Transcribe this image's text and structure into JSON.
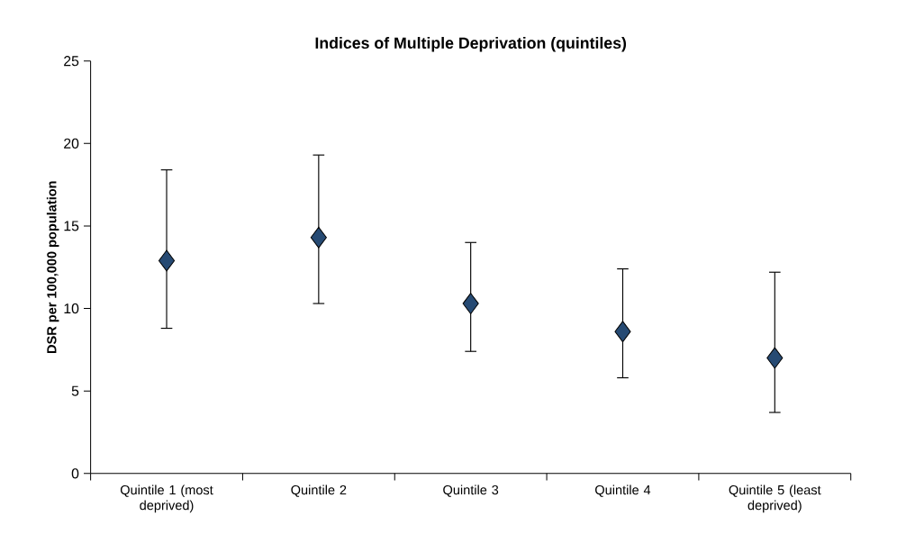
{
  "chart_data": {
    "type": "scatter",
    "title": "Indices of Multiple Deprivation (quintiles)",
    "ylabel": "DSR per 100,000 population",
    "categories": [
      "Quintile 1 (most deprived)",
      "Quintile 2",
      "Quintile 3",
      "Quintile 4",
      "Quintile 5 (least deprived)"
    ],
    "values": [
      12.9,
      14.3,
      10.3,
      8.6,
      7.0
    ],
    "errors": [
      [
        8.8,
        18.4
      ],
      [
        10.3,
        19.3
      ],
      [
        7.4,
        14.0
      ],
      [
        5.8,
        12.4
      ],
      [
        3.7,
        12.2
      ]
    ],
    "color": "#264a73",
    "marker": "diamond",
    "ylim": [
      0,
      25
    ],
    "yticks": [
      0,
      5,
      10,
      15,
      20,
      25
    ],
    "grid": false
  }
}
